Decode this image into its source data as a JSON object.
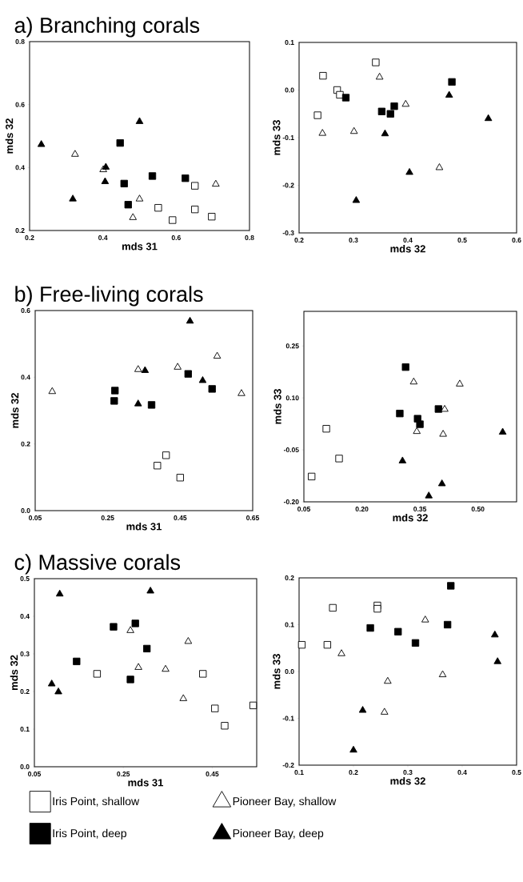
{
  "chart_data": [
    {
      "type": "scatter",
      "title": "a) Branching corals",
      "xlabel": "mds 31",
      "ylabel": "mds 32",
      "xlim": [
        0.2,
        0.8
      ],
      "ylim": [
        0.2,
        0.8
      ],
      "xticks": [
        0.2,
        0.4,
        0.6,
        0.8
      ],
      "yticks": [
        0.2,
        0.4,
        0.6,
        0.8
      ],
      "series": [
        {
          "color": "#ffffff",
          "marker": "square",
          "x": [
            0.651,
            0.551,
            0.59,
            0.651,
            0.697
          ],
          "values": [
            0.342,
            0.272,
            0.233,
            0.267,
            0.244
          ]
        },
        {
          "color": "#000000",
          "marker": "square",
          "x": [
            0.447,
            0.458,
            0.535,
            0.625,
            0.469
          ],
          "values": [
            0.478,
            0.349,
            0.373,
            0.366,
            0.282
          ]
        },
        {
          "color": "#ffffff",
          "marker": "triangle",
          "x": [
            0.324,
            0.401,
            0.5,
            0.482,
            0.708
          ],
          "values": [
            0.442,
            0.393,
            0.3,
            0.241,
            0.347
          ]
        },
        {
          "color": "#000000",
          "marker": "triangle",
          "x": [
            0.232,
            0.318,
            0.408,
            0.406,
            0.5
          ],
          "values": [
            0.473,
            0.3,
            0.401,
            0.355,
            0.546
          ]
        }
      ]
    },
    {
      "type": "scatter",
      "xlabel": "mds 32",
      "ylabel": "mds 33",
      "xlim": [
        0.2,
        0.6
      ],
      "ylim": [
        -0.3,
        0.1
      ],
      "xticks": [
        0.2,
        0.3,
        0.4,
        0.5,
        0.6
      ],
      "yticks": [
        -0.3,
        -0.2,
        -0.1,
        {
          "value": 0,
          "label": "0.0"
        },
        0.1
      ],
      "series": [
        {
          "color": "#ffffff",
          "marker": "square",
          "x": [
            0.244,
            0.341,
            0.27,
            0.275,
            0.234
          ],
          "values": [
            0.03,
            0.058,
            0.0,
            -0.01,
            -0.053
          ]
        },
        {
          "color": "#000000",
          "marker": "square",
          "x": [
            0.286,
            0.352,
            0.368,
            0.375,
            0.481
          ],
          "values": [
            -0.016,
            -0.045,
            -0.05,
            -0.034,
            0.017
          ]
        },
        {
          "color": "#ffffff",
          "marker": "triangle",
          "x": [
            0.243,
            0.301,
            0.348,
            0.396,
            0.458
          ],
          "values": [
            -0.091,
            -0.087,
            0.027,
            -0.03,
            -0.163
          ]
        },
        {
          "color": "#000000",
          "marker": "triangle",
          "x": [
            0.305,
            0.358,
            0.403,
            0.476,
            0.548
          ],
          "values": [
            -0.232,
            -0.092,
            -0.173,
            -0.011,
            -0.06
          ]
        }
      ]
    },
    {
      "type": "scatter",
      "title": "b) Free-living corals",
      "xlabel": "mds 31",
      "ylabel": "mds 32",
      "xlim": [
        0.05,
        0.65
      ],
      "ylim": [
        0,
        0.6
      ],
      "xticks": [
        0.05,
        0.25,
        0.45,
        0.65
      ],
      "yticks": [
        {
          "value": 0,
          "label": "0.0"
        },
        0.2,
        0.4,
        0.6
      ],
      "series": [
        {
          "color": "#ffffff",
          "marker": "square",
          "x": [
            0.387,
            0.411,
            0.45
          ],
          "values": [
            0.135,
            0.166,
            0.099
          ]
        },
        {
          "color": "#000000",
          "marker": "square",
          "x": [
            0.27,
            0.268,
            0.371,
            0.472,
            0.538
          ],
          "values": [
            0.36,
            0.329,
            0.317,
            0.41,
            0.365
          ]
        },
        {
          "color": "#ffffff",
          "marker": "triangle",
          "x": [
            0.097,
            0.334,
            0.443,
            0.552,
            0.619
          ],
          "values": [
            0.357,
            0.423,
            0.43,
            0.463,
            0.351
          ]
        },
        {
          "color": "#000000",
          "marker": "triangle",
          "x": [
            0.334,
            0.353,
            0.477,
            0.512
          ],
          "values": [
            0.32,
            0.42,
            0.568,
            0.39
          ]
        }
      ]
    },
    {
      "type": "scatter",
      "xlabel": "mds 32",
      "ylabel": "mds 33",
      "xlim": [
        0.05,
        0.6
      ],
      "ylim": [
        -0.2,
        0.35
      ],
      "xticks": [
        0.05,
        {
          "value": 0.2,
          "label": "0.20"
        },
        0.35,
        {
          "value": 0.5,
          "label": "0.50"
        }
      ],
      "yticks": [
        {
          "value": -0.2,
          "label": "-0.20"
        },
        -0.05,
        {
          "value": 0.1,
          "label": "0.10"
        },
        0.25
      ],
      "series": [
        {
          "color": "#ffffff",
          "marker": "square",
          "x": [
            0.108,
            0.141,
            0.07
          ],
          "values": [
            0.011,
            -0.075,
            -0.127
          ]
        },
        {
          "color": "#000000",
          "marker": "square",
          "x": [
            0.313,
            0.298,
            0.344,
            0.35,
            0.398
          ],
          "values": [
            0.189,
            0.055,
            0.04,
            0.024,
            0.068
          ]
        },
        {
          "color": "#ffffff",
          "marker": "triangle",
          "x": [
            0.334,
            0.342,
            0.414,
            0.41,
            0.453
          ],
          "values": [
            0.146,
            0.003,
            0.067,
            -0.005,
            0.14
          ]
        },
        {
          "color": "#000000",
          "marker": "triangle",
          "x": [
            0.305,
            0.373,
            0.407,
            0.564
          ],
          "values": [
            -0.082,
            -0.183,
            -0.148,
            0.001
          ]
        }
      ]
    },
    {
      "type": "scatter",
      "title": "c) Massive corals",
      "xlabel": "mds 31",
      "ylabel": "mds 32",
      "xlim": [
        0.05,
        0.55
      ],
      "ylim": [
        0,
        0.5
      ],
      "xticks": [
        0.05,
        0.25,
        0.45
      ],
      "yticks": [
        {
          "value": 0,
          "label": "0.0"
        },
        0.1,
        0.2,
        0.3,
        0.4,
        0.5
      ],
      "series": [
        {
          "color": "#ffffff",
          "marker": "square",
          "x": [
            0.191,
            0.429,
            0.456,
            0.478,
            0.542
          ],
          "values": [
            0.247,
            0.247,
            0.155,
            0.109,
            0.163
          ]
        },
        {
          "color": "#000000",
          "marker": "square",
          "x": [
            0.145,
            0.228,
            0.277,
            0.266,
            0.303
          ],
          "values": [
            0.28,
            0.372,
            0.381,
            0.232,
            0.314
          ]
        },
        {
          "color": "#ffffff",
          "marker": "triangle",
          "x": [
            0.266,
            0.284,
            0.345,
            0.396,
            0.385
          ],
          "values": [
            0.362,
            0.264,
            0.259,
            0.333,
            0.181
          ]
        },
        {
          "color": "#000000",
          "marker": "triangle",
          "x": [
            0.107,
            0.089,
            0.104,
            0.311
          ],
          "values": [
            0.459,
            0.22,
            0.199,
            0.467
          ]
        }
      ]
    },
    {
      "type": "scatter",
      "xlabel": "mds 32",
      "ylabel": "mds 33",
      "xlim": [
        0.1,
        0.5
      ],
      "ylim": [
        -0.2,
        0.2
      ],
      "xticks": [
        0.1,
        0.2,
        0.3,
        0.4,
        0.5
      ],
      "yticks": [
        -0.2,
        -0.1,
        {
          "value": 0,
          "label": "0.0"
        },
        0.1,
        0.2
      ],
      "legend": "bottom",
      "series": [
        {
          "name": "Iris Point, shallow",
          "color": "#ffffff",
          "marker": "square",
          "x": [
            0.105,
            0.162,
            0.244,
            0.244,
            0.152
          ],
          "values": [
            0.057,
            0.136,
            0.141,
            0.134,
            0.057
          ]
        },
        {
          "name": "Iris Point, deep",
          "color": "#000000",
          "marker": "square",
          "x": [
            0.231,
            0.282,
            0.314,
            0.373,
            0.379
          ],
          "values": [
            0.093,
            0.085,
            0.061,
            0.1,
            0.183
          ]
        },
        {
          "name": "Pioneer Bay, shallow",
          "color": "#ffffff",
          "marker": "triangle",
          "x": [
            0.178,
            0.263,
            0.257,
            0.332,
            0.364
          ],
          "values": [
            0.038,
            -0.021,
            -0.087,
            0.11,
            -0.007
          ]
        },
        {
          "name": "Pioneer Bay, deep",
          "color": "#000000",
          "marker": "triangle",
          "x": [
            0.217,
            0.2,
            0.46,
            0.465
          ],
          "values": [
            -0.083,
            -0.168,
            0.078,
            0.021
          ]
        }
      ]
    }
  ]
}
